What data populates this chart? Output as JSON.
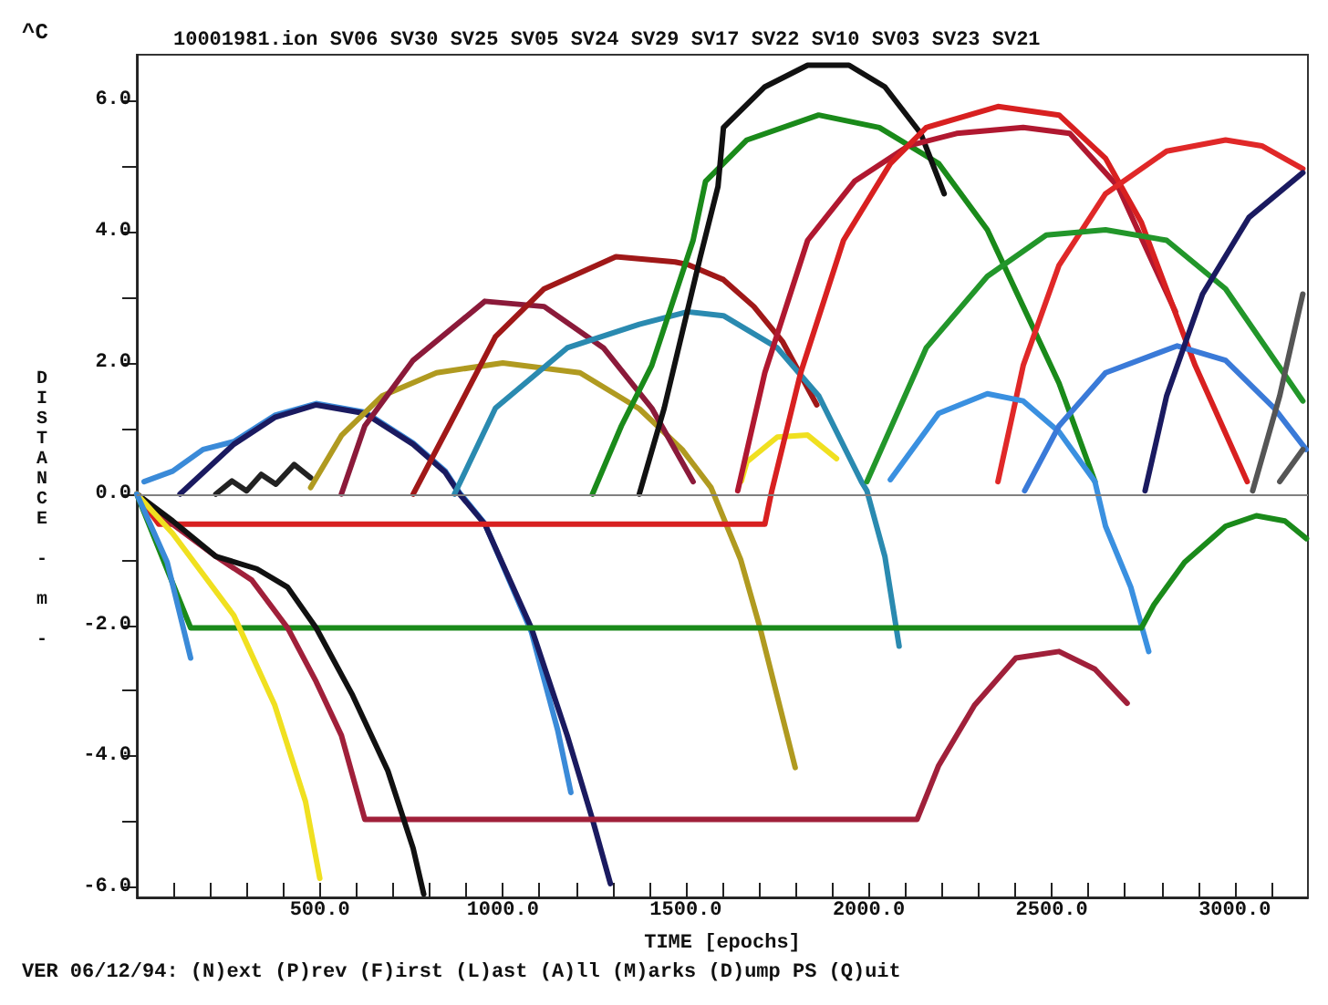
{
  "chart_data": {
    "type": "line",
    "title": "10001981.ion SV06 SV30 SV25 SV05 SV24 SV29 SV17 SV22 SV10 SV03 SV23 SV21",
    "xlabel": "TIME [epochs]",
    "ylabel": "DISTANCE - m -",
    "annotations": [
      "^C",
      "VER 06/12/94: (N)ext (P)rev (F)irst (L)ast (A)ll (M)arks (D)ump PS (Q)uit"
    ],
    "xlim": [
      0,
      3200
    ],
    "ylim": [
      -6.15,
      6.7
    ],
    "xticks": [
      {
        "value": 100,
        "label": null
      },
      {
        "value": 200,
        "label": null
      },
      {
        "value": 300,
        "label": null
      },
      {
        "value": 400,
        "label": null
      },
      {
        "value": 500,
        "label": "500.0"
      },
      {
        "value": 600,
        "label": null
      },
      {
        "value": 700,
        "label": null
      },
      {
        "value": 800,
        "label": null
      },
      {
        "value": 900,
        "label": null
      },
      {
        "value": 1000,
        "label": "1000.0"
      },
      {
        "value": 1100,
        "label": null
      },
      {
        "value": 1200,
        "label": null
      },
      {
        "value": 1300,
        "label": null
      },
      {
        "value": 1400,
        "label": null
      },
      {
        "value": 1500,
        "label": "1500.0"
      },
      {
        "value": 1600,
        "label": null
      },
      {
        "value": 1700,
        "label": null
      },
      {
        "value": 1800,
        "label": null
      },
      {
        "value": 1900,
        "label": null
      },
      {
        "value": 2000,
        "label": "2000.0"
      },
      {
        "value": 2100,
        "label": null
      },
      {
        "value": 2200,
        "label": null
      },
      {
        "value": 2300,
        "label": null
      },
      {
        "value": 2400,
        "label": null
      },
      {
        "value": 2500,
        "label": "2500.0"
      },
      {
        "value": 2600,
        "label": null
      },
      {
        "value": 2700,
        "label": null
      },
      {
        "value": 2800,
        "label": null
      },
      {
        "value": 2900,
        "label": null
      },
      {
        "value": 3000,
        "label": "3000.0"
      },
      {
        "value": 3100,
        "label": null
      }
    ],
    "yticks": [
      {
        "value": -6,
        "label": "-6.0"
      },
      {
        "value": -5,
        "label": null
      },
      {
        "value": -4,
        "label": "-4.0"
      },
      {
        "value": -3,
        "label": null
      },
      {
        "value": -2,
        "label": "-2.0"
      },
      {
        "value": -1,
        "label": null
      },
      {
        "value": 0,
        "label": "0.0"
      },
      {
        "value": 1,
        "label": null
      },
      {
        "value": 2,
        "label": "2.0"
      },
      {
        "value": 3,
        "label": null
      },
      {
        "value": 4,
        "label": "4.0"
      },
      {
        "value": 5,
        "label": null
      },
      {
        "value": 6,
        "label": "6.0"
      }
    ],
    "grid": false,
    "marker": "none",
    "line_style": "solid",
    "ref_lines": [
      {
        "axis": "y",
        "value": 0,
        "label": null,
        "color": "#808080"
      }
    ],
    "series": [
      {
        "color": "#3a8ad8",
        "x": [
          20,
          98,
          181,
          265,
          377,
          490,
          623,
          755,
          843,
          882,
          951,
          1078,
          1150,
          1186
        ],
        "values": [
          0.19,
          0.35,
          0.68,
          0.8,
          1.2,
          1.38,
          1.25,
          0.78,
          0.35,
          0.02,
          -0.45,
          -2.1,
          -3.6,
          -4.55
        ]
      },
      {
        "color": "#1a1a60",
        "x": [
          118,
          265,
          377,
          490,
          623,
          755,
          843,
          882,
          951,
          1078,
          1176,
          1245,
          1294
        ],
        "values": [
          0,
          0.76,
          1.17,
          1.36,
          1.23,
          0.76,
          0.33,
          0,
          -0.46,
          -2.04,
          -3.68,
          -4.96,
          -5.94
        ]
      },
      {
        "color": "#222222",
        "x": [
          216,
          260,
          300,
          340,
          380,
          430,
          475
        ],
        "values": [
          0,
          0.2,
          0.05,
          0.3,
          0.15,
          0.45,
          0.25
        ]
      },
      {
        "color": "#b09a20",
        "x": [
          475,
          560,
          671,
          819,
          1000,
          1211,
          1373,
          1490,
          1569,
          1650,
          1701,
          1799
        ],
        "values": [
          0.1,
          0.9,
          1.5,
          1.85,
          2.0,
          1.85,
          1.3,
          0.68,
          0.1,
          -1.0,
          -2.0,
          -4.17
        ]
      },
      {
        "color": "#8b1a3a",
        "x": [
          559,
          623,
          755,
          951,
          1113,
          1275,
          1407,
          1520
        ],
        "values": [
          0,
          1.04,
          2.04,
          2.94,
          2.86,
          2.23,
          1.31,
          0.19
        ]
      },
      {
        "color": "#a01818",
        "x": [
          755,
          853,
          980,
          1113,
          1309,
          1471,
          1505,
          1603,
          1686,
          1765,
          1858
        ],
        "values": [
          0,
          1.04,
          2.4,
          3.13,
          3.62,
          3.54,
          3.5,
          3.27,
          2.86,
          2.32,
          1.36
        ]
      },
      {
        "color": "#2a8ab0",
        "x": [
          868,
          980,
          1176,
          1373,
          1505,
          1603,
          1750,
          1863,
          1980,
          1995,
          2044,
          2083
        ],
        "values": [
          0,
          1.31,
          2.23,
          2.59,
          2.78,
          2.72,
          2.23,
          1.5,
          0.19,
          0.05,
          -0.95,
          -2.32
        ]
      },
      {
        "color": "#1a8a1a",
        "x": [
          1245,
          1324,
          1407,
          1520,
          1554,
          1667,
          1863,
          2029,
          2191,
          2324,
          2422,
          2520,
          2618
        ],
        "values": [
          0,
          1.04,
          1.96,
          3.87,
          4.77,
          5.4,
          5.78,
          5.59,
          5.04,
          4.03,
          2.86,
          1.69,
          0.19
        ]
      },
      {
        "color": "#111111",
        "x": [
          1373,
          1441,
          1539,
          1588,
          1603,
          1716,
          1833,
          1946,
          2044,
          2142,
          2206
        ],
        "values": [
          0,
          1.31,
          3.6,
          4.69,
          5.59,
          6.21,
          6.54,
          6.54,
          6.21,
          5.5,
          4.58
        ]
      },
      {
        "color": "#f0e020",
        "x": [
          1652,
          1667,
          1750,
          1833,
          1912
        ],
        "values": [
          0.2,
          0.49,
          0.87,
          0.9,
          0.54
        ]
      },
      {
        "color": "#b01830",
        "x": [
          1642,
          1716,
          1833,
          1961,
          2108,
          2240,
          2422,
          2549,
          2681,
          2779,
          2838
        ],
        "values": [
          0.05,
          1.85,
          3.87,
          4.77,
          5.31,
          5.5,
          5.59,
          5.5,
          4.69,
          3.49,
          2.78
        ]
      },
      {
        "color": "#d82020",
        "x": [
          0,
          60,
          1716,
          1735,
          1814,
          1931,
          2059,
          2157,
          2353,
          2520,
          2647,
          2745,
          2892,
          3034
        ],
        "values": [
          0,
          -0.46,
          -0.46,
          0.05,
          1.85,
          3.87,
          5.04,
          5.59,
          5.91,
          5.78,
          5.12,
          4.14,
          1.96,
          0.19
        ]
      },
      {
        "color": "#e02828",
        "x": [
          2353,
          2422,
          2520,
          2647,
          2814,
          2975,
          3074,
          3186
        ],
        "values": [
          0.19,
          1.96,
          3.49,
          4.58,
          5.23,
          5.4,
          5.31,
          4.96
        ]
      },
      {
        "color": "#22962a",
        "x": [
          1995,
          2157,
          2324,
          2485,
          2647,
          2814,
          2975,
          3186
        ],
        "values": [
          0.19,
          2.23,
          3.32,
          3.95,
          4.03,
          3.87,
          3.13,
          1.42
        ]
      },
      {
        "color": "#3a90e0",
        "x": [
          2059,
          2191,
          2324,
          2422,
          2520,
          2618,
          2647,
          2716,
          2765
        ],
        "values": [
          0.22,
          1.23,
          1.53,
          1.42,
          0.95,
          0.19,
          -0.49,
          -1.42,
          -2.4
        ]
      },
      {
        "color": "#3a7ad8",
        "x": [
          2426,
          2520,
          2647,
          2843,
          2975,
          3108,
          3195
        ],
        "values": [
          0.05,
          1.04,
          1.85,
          2.26,
          2.04,
          1.31,
          0.68
        ]
      },
      {
        "color": "#1a1a60",
        "x": [
          2755,
          2814,
          2912,
          3039,
          3186
        ],
        "values": [
          0.05,
          1.5,
          3.05,
          4.22,
          4.9
        ]
      },
      {
        "color": "#555555",
        "x": [
          3049,
          3123,
          3186
        ],
        "values": [
          0.05,
          1.5,
          3.05
        ]
      },
      {
        "color": "#555555",
        "x": [
          3123,
          3186
        ],
        "values": [
          0.19,
          0.68
        ]
      },
      {
        "color": "#1a8a1a",
        "x": [
          0,
          147,
          2745,
          2779,
          2863,
          2975,
          3059,
          3137,
          3196
        ],
        "values": [
          0,
          -2.04,
          -2.04,
          -1.69,
          -1.04,
          -0.49,
          -0.33,
          -0.41,
          -0.68
        ]
      },
      {
        "color": "#a0203a",
        "x": [
          0,
          98,
          216,
          314,
          412,
          490,
          559,
          623,
          2132,
          2191,
          2289,
          2402,
          2520,
          2618,
          2706
        ],
        "values": [
          0,
          -0.46,
          -0.95,
          -1.31,
          -2.04,
          -2.86,
          -3.68,
          -4.96,
          -4.96,
          -4.14,
          -3.22,
          -2.5,
          -2.4,
          -2.67,
          -3.19
        ]
      },
      {
        "color": "#111111",
        "x": [
          0,
          98,
          216,
          328,
          412,
          490,
          588,
          686,
          755,
          784
        ],
        "values": [
          0,
          -0.41,
          -0.95,
          -1.14,
          -1.42,
          -2.04,
          -3.05,
          -4.22,
          -5.4,
          -6.1
        ]
      },
      {
        "color": "#f0e020",
        "x": [
          0,
          98,
          265,
          377,
          461,
          500
        ],
        "values": [
          0,
          -0.6,
          -1.85,
          -3.22,
          -4.69,
          -5.86
        ]
      },
      {
        "color": "#3a8ad8",
        "x": [
          0,
          83,
          147
        ],
        "values": [
          0,
          -1.04,
          -2.5
        ]
      }
    ]
  }
}
